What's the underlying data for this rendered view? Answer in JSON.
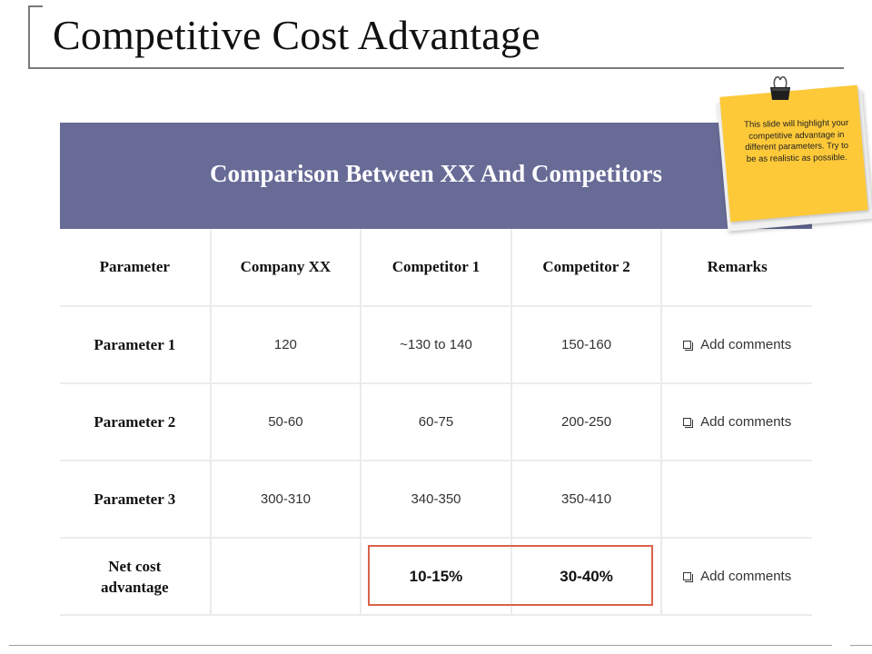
{
  "slide": {
    "title": "Competitive Cost Advantage",
    "banner_title": "Comparison Between XX And Competitors",
    "note_text": "This slide will highlight your competitive advantage in different parameters. Try to be as realistic as possible."
  },
  "table": {
    "headers": [
      "Parameter",
      "Company XX",
      "Competitor 1",
      "Competitor 2",
      "Remarks"
    ],
    "rows": [
      {
        "parameter": "Parameter 1",
        "company_xx": "120",
        "competitor_1": "~130 to 140",
        "competitor_2": "150-160",
        "remarks": "Add comments"
      },
      {
        "parameter": "Parameter 2",
        "company_xx": "50-60",
        "competitor_1": "60-75",
        "competitor_2": "200-250",
        "remarks": "Add comments"
      },
      {
        "parameter": "Parameter 3",
        "company_xx": "300-310",
        "competitor_1": "340-350",
        "competitor_2": "350-410",
        "remarks": ""
      }
    ],
    "net_row": {
      "label_line1": "Net cost",
      "label_line2": "advantage",
      "company_xx": "",
      "competitor_1": "10-15%",
      "competitor_2": "30-40%",
      "remarks": "Add comments"
    }
  },
  "colors": {
    "banner": "#676b96",
    "sticky_note": "#fdc939",
    "highlight_border": "#d9634a"
  },
  "icons": {
    "remark_icon": "checkbox-icon",
    "note_clip": "binder-clip-icon"
  }
}
